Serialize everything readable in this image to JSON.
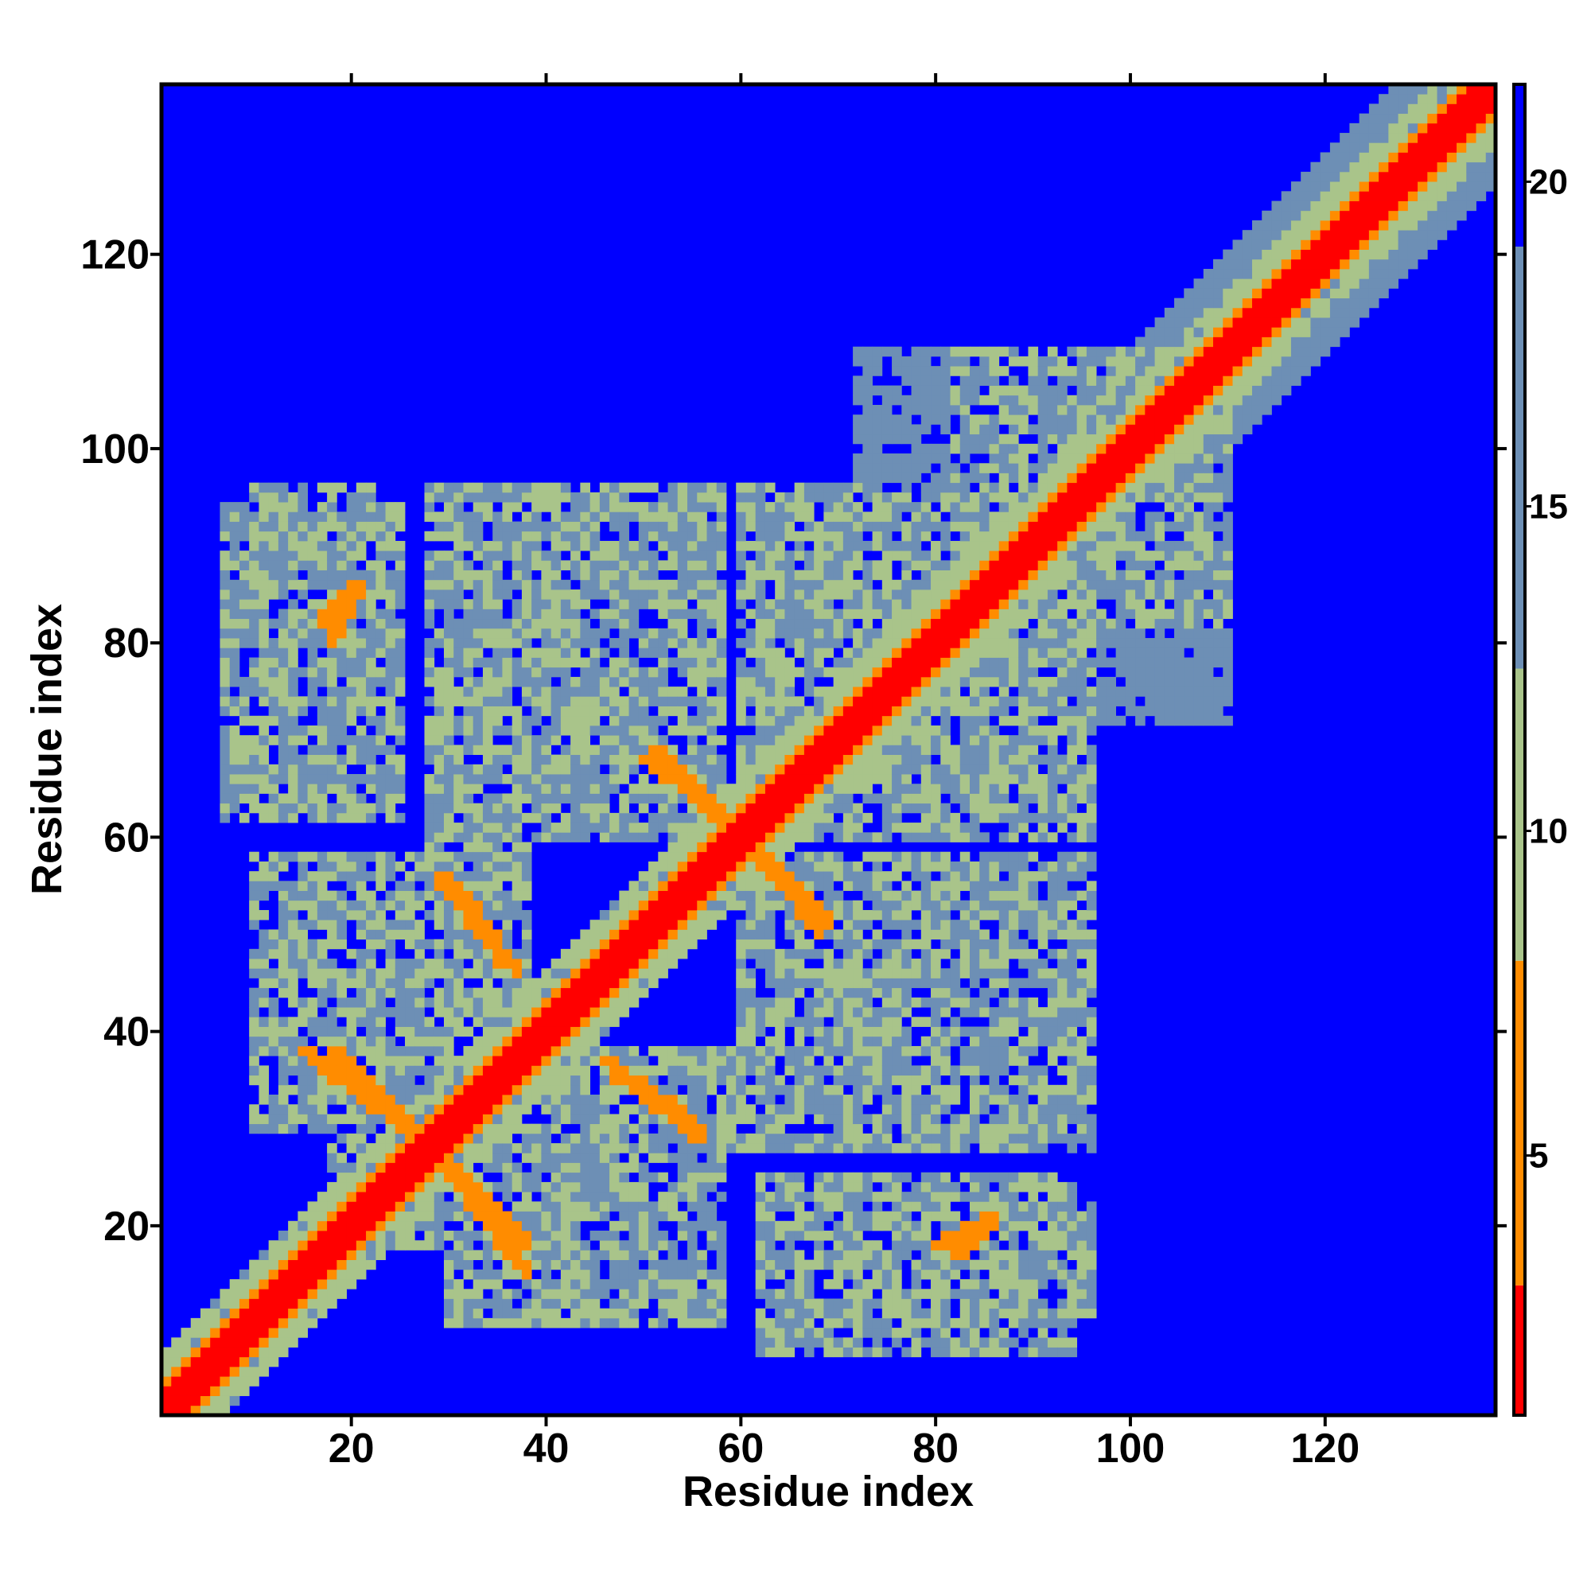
{
  "chart_data": {
    "type": "heatmap",
    "title": "",
    "xlabel": "Residue index",
    "ylabel": "Residue index",
    "xlim": [
      1,
      137
    ],
    "ylim": [
      1,
      137
    ],
    "x_ticks": [
      "20",
      "40",
      "60",
      "80",
      "100",
      "120"
    ],
    "y_ticks": [
      "20",
      "40",
      "60",
      "80",
      "100",
      "120"
    ],
    "colorbar": {
      "range": [
        1,
        21.5
      ],
      "ticks": [
        "5",
        "10",
        "15",
        "20"
      ],
      "colors": {
        "contact": "#ff0000",
        "close": "#ff8c00",
        "medium": "#a9c48a",
        "far": "#6d8fb5",
        "none": "#0000ff"
      }
    },
    "colorbar_tick_values": [
      5,
      10,
      15,
      20
    ],
    "diagonal": {
      "from": 1,
      "to": 137,
      "distance": 1
    },
    "contact_regions": [
      {
        "x": [
          20,
          48
        ],
        "y": [
          18,
          30
        ],
        "distance": 11
      },
      {
        "x": [
          68,
          96
        ],
        "y": [
          10,
          22
        ],
        "distance": 12
      },
      {
        "x": [
          10,
          30
        ],
        "y": [
          30,
          58
        ],
        "distance": 11
      },
      {
        "x": [
          60,
          96
        ],
        "y": [
          32,
          58
        ],
        "distance": 11
      },
      {
        "x": [
          7,
          25
        ],
        "y": [
          62,
          94
        ],
        "distance": 12
      },
      {
        "x": [
          28,
          38
        ],
        "y": [
          40,
          96
        ],
        "distance": 11
      },
      {
        "x": [
          46,
          58
        ],
        "y": [
          60,
          96
        ],
        "distance": 11
      },
      {
        "x": [
          60,
          96
        ],
        "y": [
          60,
          94
        ],
        "distance": 11
      },
      {
        "x": [
          82,
          108
        ],
        "y": [
          82,
          110
        ],
        "distance": 12
      },
      {
        "x": [
          72,
          96
        ],
        "y": [
          92,
          110
        ],
        "distance": 13
      }
    ],
    "contact_bands": [
      {
        "x": [
          28,
          38
        ],
        "y": [
          28,
          18
        ],
        "distance": 6
      },
      {
        "x": [
          15,
          26
        ],
        "y": [
          38,
          30
        ],
        "distance": 6
      },
      {
        "x": [
          30,
          37
        ],
        "y": [
          56,
          46
        ],
        "distance": 6
      },
      {
        "x": [
          47,
          56
        ],
        "y": [
          36,
          29
        ],
        "distance": 6
      },
      {
        "x": [
          50,
          58
        ],
        "y": [
          68,
          63
        ],
        "distance": 6
      },
      {
        "x": [
          62,
          69
        ],
        "y": [
          58,
          51
        ],
        "distance": 6
      },
      {
        "x": [
          17,
          21
        ],
        "y": [
          82,
          86
        ],
        "distance": 6
      },
      {
        "x": [
          80,
          84
        ],
        "y": [
          18,
          20
        ],
        "distance": 6
      }
    ],
    "grid": false,
    "legend": "colorbar-right"
  }
}
